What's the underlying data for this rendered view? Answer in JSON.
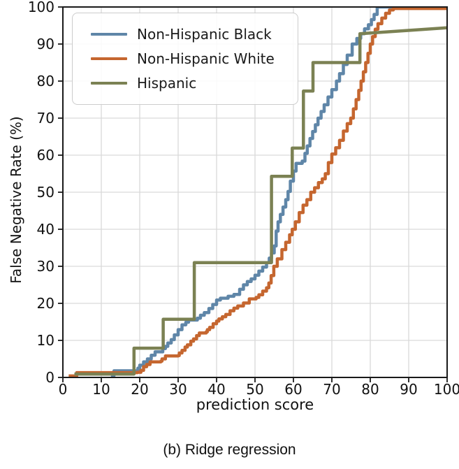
{
  "figure": {
    "caption": "(b) Ridge regression"
  },
  "chart_data": {
    "type": "line",
    "title": "",
    "xlabel": "prediction score",
    "ylabel": "False Negative Rate (%)",
    "xlim": [
      0,
      100
    ],
    "ylim": [
      0,
      100
    ],
    "x_ticks": [
      0,
      10,
      20,
      30,
      40,
      50,
      60,
      70,
      80,
      90,
      100
    ],
    "y_ticks": [
      0,
      10,
      20,
      30,
      40,
      50,
      60,
      70,
      80,
      90,
      100
    ],
    "grid": true,
    "grid_color": "#d9d9d9",
    "spine_color": "#1a1a1a",
    "legend_position": "upper left",
    "line_width": 4.5,
    "series": [
      {
        "name": "Non-Hispanic Black",
        "color": "#5f86a8",
        "interp": "step",
        "points": [
          [
            12.5,
            0.5
          ],
          [
            13.3,
            1.8
          ],
          [
            19.5,
            2.5
          ],
          [
            20,
            3.3
          ],
          [
            21,
            4.2
          ],
          [
            22,
            5
          ],
          [
            23,
            6
          ],
          [
            24,
            6.9
          ],
          [
            26,
            7.8
          ],
          [
            26.7,
            8.4
          ],
          [
            27.3,
            9.3
          ],
          [
            28.2,
            10.2
          ],
          [
            29,
            11.5
          ],
          [
            30,
            12.9
          ],
          [
            31,
            14.2
          ],
          [
            32,
            14.9
          ],
          [
            32.7,
            15.5
          ],
          [
            35,
            16
          ],
          [
            35.8,
            16.8
          ],
          [
            36.8,
            17.5
          ],
          [
            38,
            18.6
          ],
          [
            39,
            19.7
          ],
          [
            40,
            20.9
          ],
          [
            41,
            21.4
          ],
          [
            43,
            21.9
          ],
          [
            44.5,
            22.4
          ],
          [
            46,
            23.8
          ],
          [
            47,
            25
          ],
          [
            48,
            25.9
          ],
          [
            49,
            26.6
          ],
          [
            50,
            27.6
          ],
          [
            51,
            28.7
          ],
          [
            52,
            29.8
          ],
          [
            53,
            31
          ],
          [
            53.7,
            32.2
          ],
          [
            54.3,
            33.6
          ],
          [
            55,
            35.5
          ],
          [
            55.5,
            39.5
          ],
          [
            56,
            42
          ],
          [
            56.6,
            44
          ],
          [
            57.3,
            46
          ],
          [
            58,
            48
          ],
          [
            58.6,
            50.2
          ],
          [
            59.2,
            53
          ],
          [
            60,
            55.7
          ],
          [
            60.7,
            57.8
          ],
          [
            62.3,
            58.4
          ],
          [
            63,
            60.5
          ],
          [
            63.6,
            62.5
          ],
          [
            64.3,
            64.5
          ],
          [
            65,
            66.4
          ],
          [
            65.7,
            68.2
          ],
          [
            66.4,
            70
          ],
          [
            67.2,
            71.8
          ],
          [
            68,
            73.6
          ],
          [
            69,
            75.7
          ],
          [
            70,
            77.7
          ],
          [
            71.2,
            80
          ],
          [
            72,
            82
          ],
          [
            73,
            84.5
          ],
          [
            74,
            87
          ],
          [
            75.3,
            90
          ],
          [
            76.5,
            91.5
          ],
          [
            77.5,
            92.8
          ],
          [
            78.5,
            94.1
          ],
          [
            79.5,
            95.2
          ],
          [
            80.3,
            96.6
          ],
          [
            81,
            98
          ],
          [
            81.8,
            100
          ],
          [
            100,
            100
          ]
        ]
      },
      {
        "name": "Non-Hispanic White",
        "color": "#c5662f",
        "interp": "step",
        "points": [
          [
            1.5,
            0.4
          ],
          [
            3.6,
            1.3
          ],
          [
            19.4,
            1.4
          ],
          [
            20.3,
            1.9
          ],
          [
            21,
            2.9
          ],
          [
            21.8,
            3.5
          ],
          [
            22.7,
            4.2
          ],
          [
            25.5,
            4.4
          ],
          [
            25.8,
            5
          ],
          [
            26.7,
            5.8
          ],
          [
            30,
            5.9
          ],
          [
            30.3,
            6.6
          ],
          [
            31,
            7.3
          ],
          [
            31.8,
            8.2
          ],
          [
            32.4,
            8.8
          ],
          [
            33.3,
            9.8
          ],
          [
            34,
            10.4
          ],
          [
            34.8,
            11.3
          ],
          [
            35.5,
            12
          ],
          [
            37.3,
            12.3
          ],
          [
            37.6,
            12.9
          ],
          [
            38.2,
            13.5
          ],
          [
            39.1,
            14.5
          ],
          [
            40,
            15.2
          ],
          [
            40.6,
            15.8
          ],
          [
            41.5,
            16.4
          ],
          [
            42.4,
            17
          ],
          [
            43.5,
            18
          ],
          [
            44.5,
            18.7
          ],
          [
            45.5,
            19.3
          ],
          [
            47,
            20.1
          ],
          [
            48.5,
            21.2
          ],
          [
            50.3,
            21.6
          ],
          [
            51,
            22.3
          ],
          [
            52,
            23.3
          ],
          [
            53,
            24.2
          ],
          [
            53.6,
            25.5
          ],
          [
            54.2,
            27.5
          ],
          [
            54.9,
            30
          ],
          [
            55.8,
            32
          ],
          [
            57,
            34.5
          ],
          [
            58,
            36.5
          ],
          [
            59,
            38.5
          ],
          [
            59.7,
            40
          ],
          [
            60.5,
            42
          ],
          [
            61.5,
            44.5
          ],
          [
            62.5,
            46.5
          ],
          [
            63.5,
            48
          ],
          [
            64.5,
            50
          ],
          [
            65.5,
            51.2
          ],
          [
            66.5,
            52.6
          ],
          [
            67.5,
            53.6
          ],
          [
            68.3,
            55
          ],
          [
            69.1,
            58
          ],
          [
            70,
            60.3
          ],
          [
            71,
            62
          ],
          [
            72,
            64
          ],
          [
            73,
            66.5
          ],
          [
            74,
            68.5
          ],
          [
            74.9,
            70
          ],
          [
            75.6,
            72.5
          ],
          [
            76.3,
            75
          ],
          [
            77,
            77.5
          ],
          [
            77.6,
            80
          ],
          [
            78.2,
            82.5
          ],
          [
            78.8,
            85
          ],
          [
            79.4,
            87.5
          ],
          [
            80,
            90
          ],
          [
            80.6,
            92
          ],
          [
            81.3,
            94
          ],
          [
            82,
            95.5
          ],
          [
            83,
            97
          ],
          [
            84,
            98.3
          ],
          [
            85,
            99.2
          ],
          [
            86,
            99.6
          ],
          [
            100,
            99.8
          ]
        ]
      },
      {
        "name": "Hispanic",
        "color": "#7b8153",
        "interp": "linear",
        "points": [
          [
            3,
            0.9
          ],
          [
            18.5,
            0.9
          ],
          [
            18.5,
            7.9
          ],
          [
            26.1,
            7.9
          ],
          [
            26.1,
            15.7
          ],
          [
            34.2,
            15.7
          ],
          [
            34.2,
            31
          ],
          [
            54.3,
            31
          ],
          [
            54.3,
            54.3
          ],
          [
            59.7,
            54.3
          ],
          [
            59.7,
            61.9
          ],
          [
            62.6,
            61.9
          ],
          [
            62.6,
            77.3
          ],
          [
            65.1,
            77.3
          ],
          [
            65.1,
            85
          ],
          [
            77.3,
            85
          ],
          [
            77.3,
            92.8
          ],
          [
            100,
            94.4
          ]
        ]
      }
    ]
  }
}
